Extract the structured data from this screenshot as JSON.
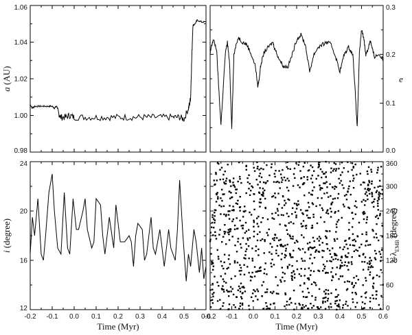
{
  "chart_data": [
    {
      "panel": "top-left",
      "type": "line",
      "xlabel": "Time (Myr)",
      "ylabel": "a (AU)",
      "xlim": [
        -0.2,
        0.6
      ],
      "ylim": [
        0.98,
        1.06
      ],
      "xticks": [
        -0.2,
        -0.1,
        0.0,
        0.1,
        0.2,
        0.3,
        0.4,
        0.5,
        0.6
      ],
      "yticks": [
        "0.98",
        "1.00",
        "1.02",
        "1.04",
        "1.06"
      ],
      "ytick_side": "left",
      "grid": false,
      "series": [
        {
          "x": [
            -0.2,
            -0.19,
            -0.18,
            -0.16,
            -0.14,
            -0.12,
            -0.1,
            -0.09,
            -0.08,
            -0.075,
            -0.07,
            -0.06,
            -0.04,
            -0.02,
            0.0,
            0.05,
            0.1,
            0.15,
            0.2,
            0.25,
            0.3,
            0.35,
            0.4,
            0.45,
            0.48,
            0.5,
            0.52,
            0.525,
            0.53,
            0.535,
            0.54,
            0.55,
            0.56,
            0.58,
            0.6
          ],
          "y": [
            1.006,
            1.004,
            1.005,
            1.005,
            1.005,
            1.005,
            1.005,
            1.004,
            1.005,
            1.004,
            1.001,
            0.999,
            0.999,
            1.0,
            0.999,
            0.999,
            0.999,
            0.999,
            0.999,
            0.999,
            0.999,
            0.999,
            0.999,
            0.999,
            0.999,
            0.998,
            1.004,
            1.006,
            1.01,
            1.03,
            1.049,
            1.05,
            1.052,
            1.051,
            1.051
          ]
        }
      ]
    },
    {
      "panel": "top-right",
      "type": "line",
      "xlabel": "",
      "ylabel": "e",
      "xlim": [
        -0.2,
        0.6
      ],
      "ylim": [
        0.0,
        0.3
      ],
      "xticks": [
        -0.2,
        -0.1,
        0.0,
        0.1,
        0.2,
        0.3,
        0.4,
        0.5,
        0.6
      ],
      "yticks": [
        "0.0",
        "0.1",
        "0.2",
        "0.3"
      ],
      "ytick_side": "right",
      "grid": false,
      "series": [
        {
          "x": [
            -0.2,
            -0.195,
            -0.185,
            -0.17,
            -0.16,
            -0.15,
            -0.13,
            -0.12,
            -0.11,
            -0.1,
            -0.09,
            -0.07,
            -0.05,
            -0.03,
            -0.01,
            0.01,
            0.02,
            0.025,
            0.035,
            0.05,
            0.07,
            0.09,
            0.1,
            0.12,
            0.14,
            0.16,
            0.18,
            0.2,
            0.22,
            0.24,
            0.26,
            0.28,
            0.3,
            0.32,
            0.34,
            0.36,
            0.38,
            0.4,
            0.42,
            0.44,
            0.46,
            0.47,
            0.48,
            0.49,
            0.5,
            0.51,
            0.52,
            0.53,
            0.54,
            0.55,
            0.56,
            0.58,
            0.6
          ],
          "y": [
            0.2,
            0.215,
            0.23,
            0.21,
            0.13,
            0.055,
            0.2,
            0.225,
            0.18,
            0.05,
            0.2,
            0.235,
            0.225,
            0.22,
            0.2,
            0.175,
            0.135,
            0.145,
            0.18,
            0.205,
            0.215,
            0.225,
            0.21,
            0.19,
            0.175,
            0.175,
            0.2,
            0.23,
            0.24,
            0.22,
            0.165,
            0.2,
            0.215,
            0.22,
            0.225,
            0.22,
            0.195,
            0.165,
            0.2,
            0.215,
            0.2,
            0.13,
            0.05,
            0.2,
            0.25,
            0.235,
            0.2,
            0.21,
            0.23,
            0.21,
            0.195,
            0.2,
            0.19
          ]
        }
      ]
    },
    {
      "panel": "bottom-left",
      "type": "line",
      "xlabel": "Time (Myr)",
      "ylabel": "i (degree)",
      "xlim": [
        -0.2,
        0.6
      ],
      "ylim": [
        12,
        24
      ],
      "xticks": [
        -0.2,
        -0.1,
        0.0,
        0.1,
        0.2,
        0.3,
        0.4,
        0.5,
        0.6
      ],
      "yticks": [
        "12",
        "16",
        "20",
        "24"
      ],
      "ytick_side": "left",
      "grid": false,
      "series": [
        {
          "x": [
            -0.2,
            -0.19,
            -0.18,
            -0.165,
            -0.15,
            -0.14,
            -0.13,
            -0.115,
            -0.1,
            -0.09,
            -0.075,
            -0.06,
            -0.045,
            -0.03,
            -0.02,
            -0.005,
            0.01,
            0.02,
            0.04,
            0.05,
            0.06,
            0.08,
            0.09,
            0.1,
            0.12,
            0.13,
            0.14,
            0.16,
            0.18,
            0.19,
            0.21,
            0.23,
            0.25,
            0.26,
            0.27,
            0.28,
            0.29,
            0.31,
            0.32,
            0.33,
            0.35,
            0.36,
            0.37,
            0.39,
            0.4,
            0.41,
            0.43,
            0.44,
            0.46,
            0.47,
            0.48,
            0.495,
            0.51,
            0.52,
            0.53,
            0.545,
            0.555,
            0.57,
            0.58,
            0.59,
            0.6
          ],
          "y": [
            16.5,
            19.5,
            18.0,
            21.0,
            16.5,
            16.0,
            18.0,
            21.5,
            23.0,
            20.0,
            17.0,
            16.5,
            21.5,
            17.0,
            16.5,
            21.0,
            18.5,
            18.5,
            20.0,
            21.0,
            18.5,
            17.0,
            17.5,
            21.0,
            20.5,
            18.0,
            16.5,
            19.5,
            17.0,
            20.5,
            17.5,
            17.5,
            18.0,
            17.5,
            15.5,
            18.0,
            19.0,
            18.5,
            16.0,
            16.5,
            19.5,
            17.0,
            16.5,
            18.5,
            17.0,
            15.5,
            18.5,
            17.0,
            16.0,
            18.5,
            22.5,
            18.0,
            14.3,
            16.5,
            15.5,
            18.5,
            17.5,
            15.0,
            17.0,
            14.5,
            15.5
          ]
        }
      ]
    },
    {
      "panel": "bottom-right",
      "type": "scatter",
      "xlabel": "Time (Myr)",
      "ylabel": "λ-λEMB (degree)",
      "ylabel_main": "λ-λ",
      "ylabel_sub": "EMB",
      "ylabel_tail": " (degree)",
      "xlim": [
        -0.2,
        0.6
      ],
      "ylim": [
        0,
        360
      ],
      "xticks": [
        -0.2,
        -0.1,
        0.0,
        0.1,
        0.2,
        0.3,
        0.4,
        0.5,
        0.6
      ],
      "yticks": [
        "0",
        "60",
        "120",
        "180",
        "240",
        "300",
        "360"
      ],
      "ytick_side": "right",
      "grid": false,
      "note": "dense uniformly scattered points across full range",
      "point_count": 1100
    }
  ]
}
